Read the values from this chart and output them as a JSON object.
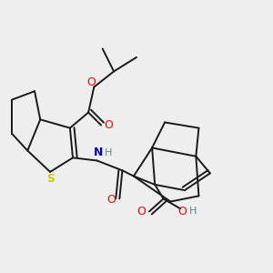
{
  "background_color": "#eeeeee",
  "bond_color": "#1a1a1a",
  "atom_colors": {
    "O": "#ff0000",
    "N": "#0000cc",
    "S": "#cccc00",
    "H": "#4a8f8f",
    "C": "#1a1a1a"
  },
  "figsize": [
    3.0,
    3.0
  ],
  "dpi": 100
}
